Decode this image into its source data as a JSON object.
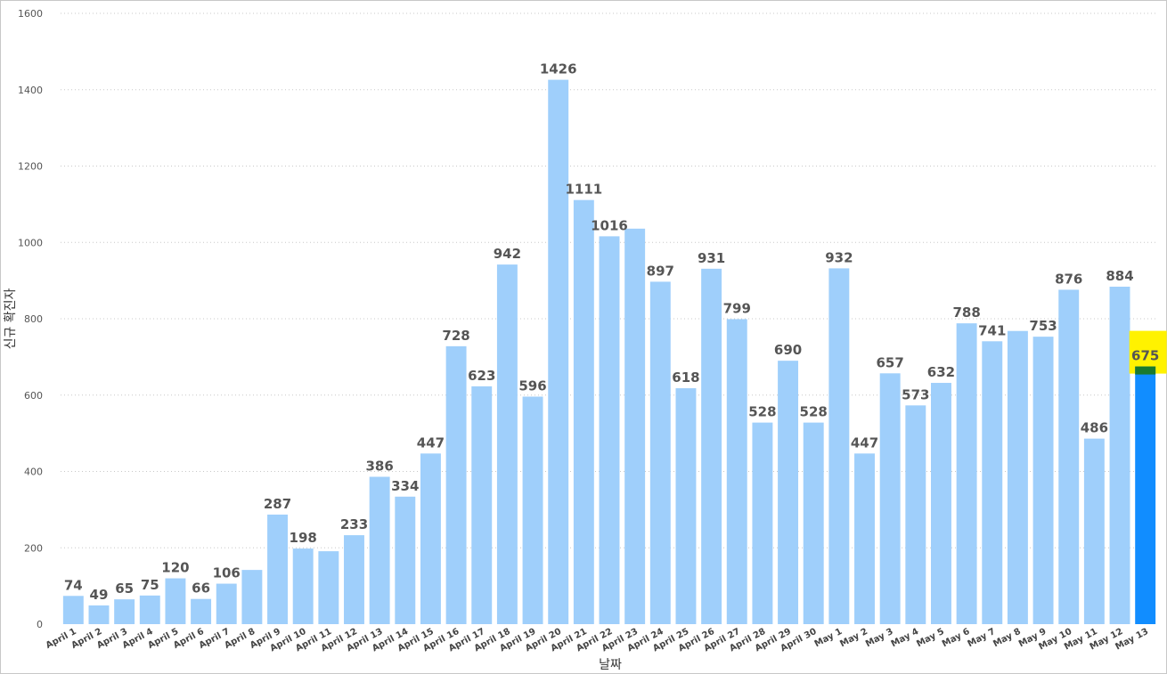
{
  "chart_data": {
    "type": "bar",
    "title": "",
    "xlabel": "날짜",
    "ylabel": "신규 확진자",
    "ylim": [
      0,
      1600
    ],
    "yticks": [
      0,
      200,
      400,
      600,
      800,
      1000,
      1200,
      1400,
      1600
    ],
    "grid": true,
    "categories": [
      "April 1",
      "April 2",
      "April 3",
      "April 4",
      "April 5",
      "April 6",
      "April 7",
      "April 8",
      "April 9",
      "April 10",
      "April 11",
      "April 12",
      "April 13",
      "April 14",
      "April 15",
      "April 16",
      "April 17",
      "April 18",
      "April 19",
      "April 20",
      "April 21",
      "April 22",
      "April 23",
      "April 24",
      "April 25",
      "April 26",
      "April 27",
      "April 28",
      "April 29",
      "April 30",
      "May 1",
      "May 2",
      "May 3",
      "May 4",
      "May 5",
      "May 6",
      "May 7",
      "May 8",
      "May 9",
      "May 10",
      "May 11",
      "May 12",
      "May 13"
    ],
    "values": [
      74,
      49,
      65,
      75,
      120,
      66,
      106,
      142,
      287,
      198,
      191,
      233,
      386,
      334,
      447,
      728,
      623,
      942,
      596,
      1426,
      1111,
      1016,
      1036,
      897,
      618,
      931,
      799,
      528,
      690,
      528,
      932,
      447,
      657,
      573,
      632,
      788,
      741,
      768,
      753,
      876,
      486,
      884,
      675
    ],
    "data_labels": [
      "74",
      "49",
      "65",
      "75",
      "120",
      "66",
      "106",
      "",
      "287",
      "198",
      "",
      "233",
      "386",
      "334",
      "447",
      "728",
      "623",
      "942",
      "596",
      "1426",
      "1111",
      "1016",
      "",
      "897",
      "618",
      "931",
      "799",
      "528",
      "690",
      "528",
      "932",
      "447",
      "657",
      "573",
      "632",
      "788",
      "741",
      "",
      "753",
      "876",
      "486",
      "884",
      "675"
    ],
    "highlighted_category": "May 13",
    "colors": {
      "bar": "#9fcffb",
      "bar_highlight": "#118dff",
      "highlight_box": "#fff200",
      "highlight_marker": "#1a7a2e",
      "gridline": "#c8c8c8",
      "label": "#555555"
    }
  }
}
